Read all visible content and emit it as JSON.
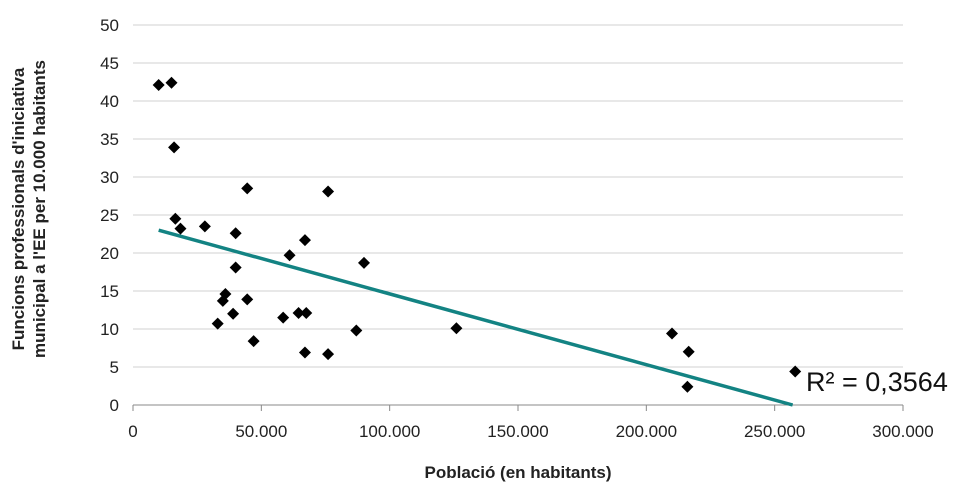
{
  "chart_data": {
    "type": "scatter",
    "xlabel": "Població (en habitants)",
    "ylabel_lines": [
      "Funcions professionals d'iniciativa",
      "municipal a l'EE per 10.000 habitants"
    ],
    "xlim": [
      0,
      300000
    ],
    "ylim": [
      0,
      50
    ],
    "xticks": [
      0,
      50000,
      100000,
      150000,
      200000,
      250000,
      300000
    ],
    "xtick_labels": [
      "0",
      "50.000",
      "100.000",
      "150.000",
      "200.000",
      "250.000",
      "300.000"
    ],
    "yticks": [
      0,
      5,
      10,
      15,
      20,
      25,
      30,
      35,
      40,
      45,
      50
    ],
    "ytick_labels": [
      "0",
      "5",
      "10",
      "15",
      "20",
      "25",
      "30",
      "35",
      "40",
      "45",
      "50"
    ],
    "grid": "horizontal",
    "marker_color": "#000000",
    "trendline_color": "#138383",
    "series": [
      {
        "points": [
          [
            10000,
            42.1
          ],
          [
            15000,
            42.4
          ],
          [
            16000,
            33.9
          ],
          [
            16500,
            24.5
          ],
          [
            18500,
            23.2
          ],
          [
            28000,
            23.5
          ],
          [
            40000,
            22.6
          ],
          [
            44500,
            28.5
          ],
          [
            40000,
            18.1
          ],
          [
            36000,
            14.6
          ],
          [
            35000,
            13.7
          ],
          [
            33000,
            10.7
          ],
          [
            39000,
            12.0
          ],
          [
            44500,
            13.9
          ],
          [
            47000,
            8.4
          ],
          [
            58500,
            11.5
          ],
          [
            61000,
            19.7
          ],
          [
            64500,
            12.1
          ],
          [
            67000,
            21.7
          ],
          [
            67500,
            12.1
          ],
          [
            67000,
            6.9
          ],
          [
            76000,
            28.1
          ],
          [
            76000,
            6.7
          ],
          [
            87000,
            9.8
          ],
          [
            90000,
            18.7
          ],
          [
            126000,
            10.1
          ],
          [
            210000,
            9.4
          ],
          [
            216500,
            7.0
          ],
          [
            216000,
            2.4
          ],
          [
            258000,
            4.4
          ]
        ]
      }
    ],
    "trendline": {
      "type": "linear",
      "points": [
        [
          10000,
          23.0
        ],
        [
          257000,
          0
        ]
      ],
      "r2_label": "R² = 0,3564"
    }
  }
}
